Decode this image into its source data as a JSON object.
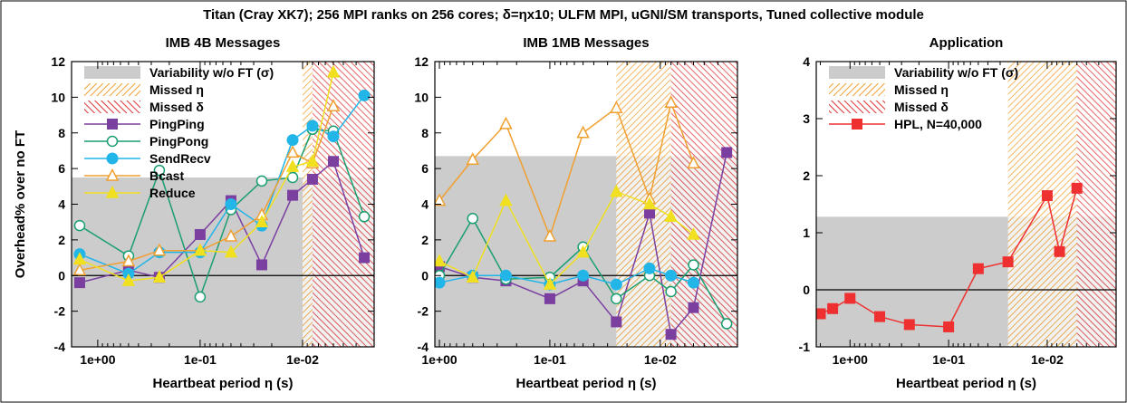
{
  "figure": {
    "title": "Titan (Cray XK7); 256 MPI ranks on 256 cores; δ=ηx10; ULFM MPI, uGNI/SM transports, Tuned collective module"
  },
  "colors": {
    "variability": "#cccccc",
    "missed_eta": "#f0a030",
    "missed_delta": "#e03030",
    "PingPing": "#7b3fa0",
    "PingPong": "#1a9e70",
    "SendRecv": "#22b5e8",
    "Bcast": "#f0a030",
    "Reduce": "#f0e020",
    "HPL": "#ee3030"
  },
  "chart_data": [
    {
      "type": "line",
      "title": "IMB 4B Messages",
      "xlabel": "Heartbeat period η (s)",
      "ylabel": "Overhead% over no FT",
      "x_scale": "log-reversed",
      "xlim": [
        1.8,
        0.002
      ],
      "ylim": [
        -4,
        12
      ],
      "x_ticks": [
        {
          "value": 1,
          "label": "1e+00"
        },
        {
          "value": 0.1,
          "label": "1e-01"
        },
        {
          "value": 0.01,
          "label": "1e-02"
        }
      ],
      "y_ticks": [
        {
          "value": -4,
          "label": "-4"
        },
        {
          "value": -2,
          "label": "-2"
        },
        {
          "value": 0,
          "label": "0"
        },
        {
          "value": 2,
          "label": "2"
        },
        {
          "value": 4,
          "label": "4"
        },
        {
          "value": 6,
          "label": "6"
        },
        {
          "value": 8,
          "label": "8"
        },
        {
          "value": 10,
          "label": "10"
        },
        {
          "value": 12,
          "label": "12"
        }
      ],
      "variability": 5.5,
      "missed_eta": [
        0.01,
        0.008
      ],
      "missed_delta": [
        0.008,
        0.002
      ],
      "legend": [
        {
          "label": "Variability w/o FT (σ)",
          "kind": "variability"
        },
        {
          "label": "Missed η",
          "kind": "missed_eta"
        },
        {
          "label": "Missed δ",
          "kind": "missed_delta"
        },
        {
          "label": "PingPing",
          "kind": "PingPing"
        },
        {
          "label": "PingPong",
          "kind": "PingPong"
        },
        {
          "label": "SendRecv",
          "kind": "SendRecv"
        },
        {
          "label": "Bcast",
          "kind": "Bcast"
        },
        {
          "label": "Reduce",
          "kind": "Reduce"
        }
      ],
      "series": [
        {
          "name": "PingPing",
          "marker": "square-filled",
          "x": [
            1.5,
            0.5,
            0.25,
            0.1,
            0.05,
            0.025,
            0.0125,
            0.008,
            0.005,
            0.0025
          ],
          "values": [
            -0.4,
            0.3,
            -0.1,
            2.3,
            4.2,
            0.6,
            4.5,
            5.4,
            6.4,
            1.0
          ]
        },
        {
          "name": "PingPong",
          "marker": "circle-open",
          "x": [
            1.5,
            0.5,
            0.25,
            0.1,
            0.05,
            0.025,
            0.0125,
            0.008,
            0.005,
            0.0025
          ],
          "values": [
            2.8,
            1.1,
            5.9,
            -1.2,
            3.7,
            5.3,
            5.5,
            8.2,
            8.1,
            3.3
          ]
        },
        {
          "name": "SendRecv",
          "marker": "circle-filled",
          "x": [
            1.5,
            0.5,
            0.25,
            0.1,
            0.05,
            0.025,
            0.0125,
            0.008,
            0.005,
            0.0025
          ],
          "values": [
            1.2,
            0.1,
            1.3,
            1.3,
            4.0,
            2.8,
            7.6,
            8.4,
            7.8,
            10.1
          ]
        },
        {
          "name": "Bcast",
          "marker": "triangle-open",
          "x": [
            1.5,
            0.5,
            0.25,
            0.1,
            0.05,
            0.025,
            0.0125,
            0.008,
            0.005
          ],
          "values": [
            0.3,
            0.8,
            1.4,
            1.4,
            2.2,
            3.4,
            6.9,
            6.3,
            9.5
          ]
        },
        {
          "name": "Reduce",
          "marker": "triangle-filled",
          "x": [
            1.5,
            0.5,
            0.25,
            0.1,
            0.05,
            0.025,
            0.0125,
            0.008,
            0.005
          ],
          "values": [
            0.9,
            -0.3,
            -0.1,
            1.4,
            1.3,
            3.0,
            6.1,
            6.4,
            11.4
          ]
        }
      ]
    },
    {
      "type": "line",
      "title": "IMB 1MB Messages",
      "xlabel": "Heartbeat period η (s)",
      "ylabel": "",
      "x_scale": "log-reversed",
      "xlim": [
        1.1,
        0.002
      ],
      "ylim": [
        -4,
        12
      ],
      "x_ticks": [
        {
          "value": 1,
          "label": "1e+00"
        },
        {
          "value": 0.1,
          "label": "1e-01"
        },
        {
          "value": 0.01,
          "label": "1e-02"
        }
      ],
      "y_ticks": [
        {
          "value": -4,
          "label": "-4"
        },
        {
          "value": -2,
          "label": "-2"
        },
        {
          "value": 0,
          "label": "0"
        },
        {
          "value": 2,
          "label": "2"
        },
        {
          "value": 4,
          "label": "4"
        },
        {
          "value": 6,
          "label": "6"
        },
        {
          "value": 8,
          "label": "8"
        },
        {
          "value": 10,
          "label": "10"
        },
        {
          "value": 12,
          "label": "12"
        }
      ],
      "variability": 6.7,
      "missed_eta": [
        0.025,
        0.008
      ],
      "missed_delta": [
        0.008,
        0.002
      ],
      "legend": [],
      "series": [
        {
          "name": "PingPing",
          "marker": "square-filled",
          "x": [
            1.0,
            0.5,
            0.25,
            0.1,
            0.05,
            0.025,
            0.0125,
            0.008,
            0.005,
            0.0025
          ],
          "values": [
            0.5,
            -0.1,
            -0.3,
            -1.3,
            -0.3,
            -2.6,
            3.5,
            -3.3,
            -1.8,
            6.9
          ]
        },
        {
          "name": "PingPong",
          "marker": "circle-open",
          "x": [
            1.0,
            0.5,
            0.25,
            0.1,
            0.05,
            0.025,
            0.0125,
            0.008,
            0.005,
            0.0025
          ],
          "values": [
            0.0,
            3.2,
            -0.2,
            -0.1,
            1.6,
            -1.3,
            0.0,
            -0.9,
            0.6,
            -2.7
          ]
        },
        {
          "name": "SendRecv",
          "marker": "circle-filled",
          "x": [
            1.0,
            0.5,
            0.25,
            0.1,
            0.05,
            0.025,
            0.0125,
            0.008,
            0.005
          ],
          "values": [
            -0.4,
            0.0,
            0.0,
            -0.5,
            0.0,
            -0.5,
            0.4,
            0.0,
            -0.4
          ]
        },
        {
          "name": "Bcast",
          "marker": "triangle-open",
          "x": [
            1.0,
            0.5,
            0.25,
            0.1,
            0.05,
            0.025,
            0.0125,
            0.008,
            0.005
          ],
          "values": [
            4.2,
            6.5,
            8.5,
            2.2,
            8.0,
            9.4,
            4.3,
            9.7,
            6.3
          ]
        },
        {
          "name": "Reduce",
          "marker": "triangle-filled",
          "x": [
            1.0,
            0.5,
            0.25,
            0.1,
            0.05,
            0.025,
            0.0125,
            0.008,
            0.005
          ],
          "values": [
            0.8,
            -0.1,
            4.2,
            -0.5,
            1.3,
            4.7,
            4.0,
            3.3,
            2.3
          ]
        }
      ]
    },
    {
      "type": "line",
      "title": "Application",
      "xlabel": "Heartbeat period η (s)",
      "ylabel": "",
      "x_scale": "log-reversed",
      "xlim": [
        2.2,
        0.002
      ],
      "ylim": [
        -1,
        4
      ],
      "x_ticks": [
        {
          "value": 1,
          "label": "1e+00"
        },
        {
          "value": 0.1,
          "label": "1e-01"
        },
        {
          "value": 0.01,
          "label": "1e-02"
        }
      ],
      "y_ticks": [
        {
          "value": -1,
          "label": "-1"
        },
        {
          "value": 0,
          "label": "0"
        },
        {
          "value": 1,
          "label": "1"
        },
        {
          "value": 2,
          "label": "2"
        },
        {
          "value": 3,
          "label": "3"
        },
        {
          "value": 4,
          "label": "4"
        }
      ],
      "variability": 1.28,
      "missed_eta": [
        0.025,
        0.005
      ],
      "missed_delta": [
        0.005,
        0.002
      ],
      "legend": [
        {
          "label": "Variability w/o FT (σ)",
          "kind": "variability"
        },
        {
          "label": "Missed η",
          "kind": "missed_eta"
        },
        {
          "label": "Missed δ",
          "kind": "missed_delta"
        },
        {
          "label": "HPL, N=40,000",
          "kind": "HPL"
        }
      ],
      "series": [
        {
          "name": "HPL, N=40,000",
          "marker": "square-filled",
          "x": [
            2.0,
            1.5,
            1.0,
            0.5,
            0.25,
            0.1,
            0.05,
            0.025,
            0.01,
            0.0075,
            0.005
          ],
          "values": [
            -0.42,
            -0.33,
            -0.15,
            -0.47,
            -0.61,
            -0.65,
            0.37,
            0.49,
            1.65,
            0.67,
            1.78
          ]
        }
      ]
    }
  ]
}
